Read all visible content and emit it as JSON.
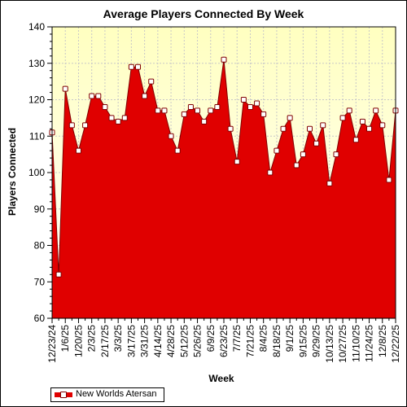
{
  "chart_data": {
    "type": "area",
    "title": "Average Players Connected By Week",
    "xlabel": "Week",
    "ylabel": "Players Connected",
    "ylim": [
      60,
      140
    ],
    "yticks": [
      60,
      70,
      80,
      90,
      100,
      110,
      120,
      130,
      140
    ],
    "x_tick_labels": [
      "12/23/24",
      "1/6/25",
      "1/20/25",
      "2/3/25",
      "2/17/25",
      "3/3/25",
      "3/17/25",
      "3/31/25",
      "4/14/25",
      "4/28/25",
      "5/12/25",
      "5/26/25",
      "6/9/25",
      "6/23/25",
      "7/7/25",
      "7/21/25",
      "8/4/25",
      "8/18/25",
      "9/1/25",
      "9/15/25",
      "9/29/25",
      "10/13/25",
      "10/27/25",
      "11/10/25",
      "11/24/25",
      "12/8/25",
      "12/22/25"
    ],
    "grid": true,
    "legend_position": "bottom-left",
    "colors": {
      "fill": "#e00000",
      "edge": "#800000",
      "plot_bg_top": "#ffffc0",
      "plot_bg_bottom": "#ffffff"
    },
    "series": [
      {
        "name": "New Worlds Atersan",
        "values": [
          111,
          72,
          123,
          113,
          106,
          113,
          121,
          121,
          118,
          115,
          114,
          115,
          129,
          129,
          121,
          125,
          117,
          117,
          110,
          106,
          116,
          118,
          117,
          114,
          117,
          118,
          131,
          112,
          103,
          120,
          118,
          119,
          116,
          100,
          106,
          112,
          115,
          102,
          105,
          112,
          108,
          113,
          97,
          105,
          115,
          117,
          109,
          114,
          112,
          117,
          113,
          98,
          117
        ]
      }
    ]
  }
}
